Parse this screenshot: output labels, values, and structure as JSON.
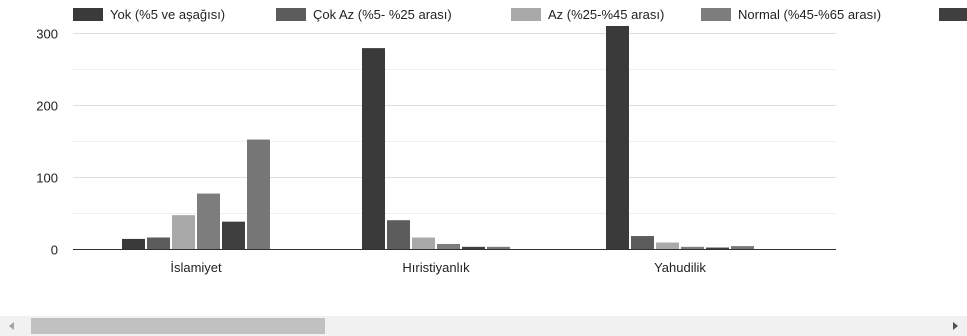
{
  "chart_data": {
    "type": "bar",
    "categories": [
      "İslamiyet",
      "Hıristiyanlık",
      "Yahudilik"
    ],
    "series": [
      {
        "name": "Yok (%5 ve aşağısı)",
        "color": "#3a3a3a",
        "values": [
          14,
          279,
          310
        ]
      },
      {
        "name": "Çok Az (%5- %25 arası)",
        "color": "#5c5c5c",
        "values": [
          16,
          40,
          18
        ]
      },
      {
        "name": "Az (%25-%45 arası)",
        "color": "#a9a9a9",
        "values": [
          47,
          16,
          9
        ]
      },
      {
        "name": "Normal (%45-%65 arası)",
        "color": "#7d7d7d",
        "values": [
          77,
          7,
          3
        ]
      },
      {
        "name": "",
        "color": "#3f3f3f",
        "values": [
          38,
          3,
          2
        ]
      },
      {
        "name": "",
        "color": "#777777",
        "values": [
          152,
          3,
          4
        ]
      }
    ],
    "y_ticks": [
      0,
      100,
      200,
      300
    ],
    "ylim": [
      0,
      300
    ],
    "grid": true,
    "legend_position": "top",
    "xlabel": "",
    "ylabel": "",
    "title": ""
  }
}
